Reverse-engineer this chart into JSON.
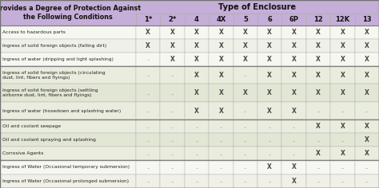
{
  "title": "Type of Enclosure",
  "header_left": "Provides a Degree of Protection Against\nthe Following Conditions",
  "columns": [
    "1*",
    "2*",
    "4",
    "4X",
    "5",
    "6",
    "6P",
    "12",
    "12K",
    "13"
  ],
  "rows": [
    {
      "label": "Access to hazardous parts",
      "values": [
        "X",
        "X",
        "X",
        "X",
        "X",
        "X",
        "X",
        "X",
        "X",
        "X"
      ],
      "group": 0
    },
    {
      "label": "Ingress of solid foreign objects (falling dirt)",
      "values": [
        "X",
        "X",
        "X",
        "X",
        "X",
        "X",
        "X",
        "X",
        "X",
        "X"
      ],
      "group": 0
    },
    {
      "label": "Ingress of water (dripping and light splashing)",
      "values": [
        "..",
        "X",
        "X",
        "X",
        "X",
        "X",
        "X",
        "X",
        "X",
        "X"
      ],
      "group": 0
    },
    {
      "label": "Ingress of solid foreign objects (circulating\ndust, lint, fibers and flyings)",
      "values": [
        "..",
        "..",
        "X",
        "X",
        "..",
        "X",
        "X",
        "X",
        "X",
        "X"
      ],
      "group": 1
    },
    {
      "label": "Ingress of solid foreign objects (settling\nairborne dust, lint, fibers and flyings)",
      "values": [
        "..",
        "..",
        "X",
        "X",
        "X",
        "X",
        "X",
        "X",
        "X",
        "X"
      ],
      "group": 1
    },
    {
      "label": "Ingress of water (hosedown and splashing water)",
      "values": [
        "..",
        "..",
        "X",
        "X",
        "..",
        "X",
        "X",
        "..",
        "..",
        ".."
      ],
      "group": 1
    },
    {
      "label": "Oil and coolant seepage",
      "values": [
        "..",
        "..",
        "..",
        "..",
        "..",
        "..",
        "..",
        "X",
        "X",
        "X"
      ],
      "group": 2
    },
    {
      "label": "Oil and coolant spraying and splashing",
      "values": [
        "..",
        "..",
        "..",
        "..",
        "..",
        "..",
        "..",
        "..",
        "..",
        "X"
      ],
      "group": 2
    },
    {
      "label": "Corrosive Agents",
      "values": [
        "..",
        "..",
        "..",
        "..",
        "..",
        "..",
        "..",
        "X",
        "X",
        "X"
      ],
      "group": 2
    },
    {
      "label": "Ingress of Water (Occasional temporary submersion)",
      "values": [
        "..",
        "..",
        "..",
        "..",
        "..",
        "X",
        "X",
        "..",
        "..",
        ".."
      ],
      "group": 3
    },
    {
      "label": "Ingress of Water (Occasional prolonged submersion)",
      "values": [
        "..",
        "..",
        "..",
        "..",
        "..",
        "..",
        "X",
        "..",
        "..",
        ".."
      ],
      "group": 3
    }
  ],
  "group_bg_colors": [
    "#f7f7f2",
    "#eaedde",
    "#eaedde",
    "#f7f7f2"
  ],
  "group_alt_colors": [
    "#f0f0e8",
    "#e2e6d4",
    "#e2e6d4",
    "#f0f0e8"
  ],
  "header_purple": "#c5aed8",
  "header_purple_dark": "#b89dcc",
  "col_header_purple": "#c5aed8",
  "border_color": "#b0b0b0",
  "group_border_color": "#808080",
  "x_color": "#4a4a4a",
  "dot_color": "#909090",
  "label_color": "#222222",
  "title_color": "#111111"
}
